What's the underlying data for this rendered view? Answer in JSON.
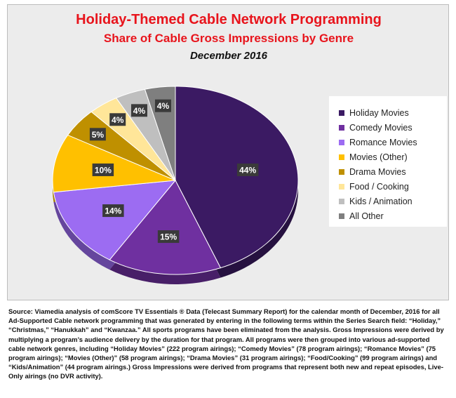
{
  "chart_data": {
    "type": "pie",
    "title": "Holiday-Themed Cable Network Programming",
    "subtitle": "Share of Cable Gross Impressions by Genre",
    "date_label": "December 2016",
    "legend_position": "right",
    "slices": [
      {
        "label": "Holiday Movies",
        "value": 44,
        "display": "44%",
        "color": "#3b1a63"
      },
      {
        "label": "Comedy Movies",
        "value": 15,
        "display": "15%",
        "color": "#6f30a0"
      },
      {
        "label": "Romance Movies",
        "value": 14,
        "display": "14%",
        "color": "#9c6cf2"
      },
      {
        "label": "Movies (Other)",
        "value": 10,
        "display": "10%",
        "color": "#ffc000"
      },
      {
        "label": "Drama Movies",
        "value": 5,
        "display": "5%",
        "color": "#bf9000"
      },
      {
        "label": "Food / Cooking",
        "value": 4,
        "display": "4%",
        "color": "#ffe699"
      },
      {
        "label": "Kids / Animation",
        "value": 4,
        "display": "4%",
        "color": "#bfbfbf"
      },
      {
        "label": "All Other",
        "value": 4,
        "display": "4%",
        "color": "#7f7f7f"
      }
    ]
  },
  "source_note": "Source: Viamedia analysis of comScore TV Essentials ® Data (Telecast Summary Report) for the calendar month of December, 2016 for all Ad-Supported Cable network programming that was generated by entering in the following terms within the Series Search field: “Holiday,” “Christmas,” “Hanukkah” and “Kwanzaa.” All sports programs have been eliminated from the analysis. Gross Impressions were derived by multiplying a program’s audience delivery by the duration for that program. All programs were then grouped into various ad-supported cable network genres, including “Holiday Movies” (222 program airings); “Comedy Movies” (78 program airings); “Romance Movies” (75 program airings); “Movies (Other)” (58 program airings); “Drama Movies” (31 program airings); “Food/Cooking” (99 program airings) and “Kids/Animation” (44 program airings.) Gross Impressions were derived from programs that represent both new and repeat episodes, Live-Only airings (no DVR activity)."
}
